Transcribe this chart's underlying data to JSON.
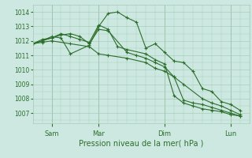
{
  "background_color": "#cce8e0",
  "grid_color": "#aaccbb",
  "line_color": "#2d6e2d",
  "xlabel": "Pression niveau de la mer( hPa )",
  "ylim": [
    1006.3,
    1014.5
  ],
  "xlim": [
    0,
    11.5
  ],
  "yticks": [
    1007,
    1008,
    1009,
    1010,
    1011,
    1012,
    1013,
    1014
  ],
  "xtick_positions": [
    1,
    3.5,
    7,
    10.5
  ],
  "xtick_labels": [
    "Sam",
    "Mar",
    "Dim",
    "Lun"
  ],
  "xvline_positions": [
    1,
    3.5,
    7,
    10.5
  ],
  "series": [
    {
      "x": [
        0,
        0.5,
        1,
        2,
        3,
        3.5,
        4,
        5,
        6,
        6.5,
        7,
        7.5,
        8,
        9,
        9.5,
        10,
        10.5,
        11
      ],
      "y": [
        1011.8,
        1011.9,
        1012.0,
        1011.8,
        1011.6,
        1011.1,
        1011.0,
        1010.8,
        1010.5,
        1010.1,
        1009.9,
        1009.5,
        1009.0,
        1008.0,
        1007.7,
        1007.5,
        1007.2,
        1006.9
      ]
    },
    {
      "x": [
        0,
        0.5,
        1,
        1.5,
        2,
        3,
        3.5,
        4,
        4.5,
        5,
        5.5,
        6,
        6.5,
        7,
        7.5,
        8,
        8.5,
        9,
        9.5,
        10,
        10.5,
        11
      ],
      "y": [
        1011.8,
        1012.0,
        1012.3,
        1012.2,
        1011.1,
        1011.7,
        1013.0,
        1013.9,
        1014.0,
        1013.6,
        1013.3,
        1011.5,
        1011.8,
        1011.2,
        1010.6,
        1010.5,
        1009.9,
        1008.7,
        1008.5,
        1007.8,
        1007.6,
        1007.2
      ]
    },
    {
      "x": [
        0,
        0.5,
        1,
        1.5,
        2,
        2.5,
        3,
        3.5,
        4,
        5,
        5.5,
        6,
        6.5,
        7,
        7.5,
        8,
        8.5,
        9,
        9.5,
        10,
        10.5,
        11
      ],
      "y": [
        1011.8,
        1012.0,
        1012.2,
        1012.4,
        1012.5,
        1012.3,
        1011.8,
        1012.8,
        1012.7,
        1011.2,
        1011.0,
        1010.8,
        1010.5,
        1010.2,
        1009.5,
        1007.9,
        1007.7,
        1007.6,
        1007.4,
        1007.2,
        1007.0,
        1006.8
      ]
    },
    {
      "x": [
        0,
        0.5,
        1,
        1.5,
        2,
        2.5,
        3,
        3.5,
        4,
        4.5,
        5,
        6,
        6.5,
        7,
        7.5,
        8,
        8.5,
        9,
        9.5,
        10,
        10.5,
        11
      ],
      "y": [
        1011.8,
        1012.1,
        1012.2,
        1012.5,
        1012.3,
        1012.1,
        1011.9,
        1013.1,
        1012.8,
        1011.6,
        1011.4,
        1011.1,
        1010.7,
        1010.4,
        1008.2,
        1007.7,
        1007.5,
        1007.3,
        1007.2,
        1007.1,
        1006.9,
        1006.8
      ]
    }
  ]
}
